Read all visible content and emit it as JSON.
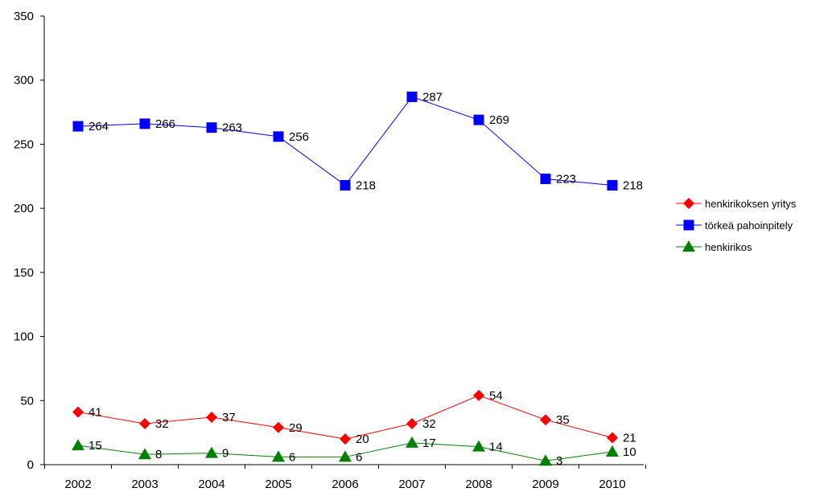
{
  "chart_data": {
    "type": "line",
    "title": "",
    "xlabel": "",
    "ylabel": "",
    "ylim": [
      0,
      350
    ],
    "yticks": [
      0,
      50,
      100,
      150,
      200,
      250,
      300,
      350
    ],
    "grid": false,
    "legend_position": "right",
    "categories": [
      "2002",
      "2003",
      "2004",
      "2005",
      "2006",
      "2007",
      "2008",
      "2009",
      "2010"
    ],
    "series": [
      {
        "name": "henkirikoksen yritys",
        "color": "#ff0000",
        "marker": "diamond",
        "values": [
          41,
          32,
          37,
          29,
          20,
          32,
          54,
          35,
          21
        ]
      },
      {
        "name": "törkeä pahoinpitely",
        "color": "#0000ff",
        "marker": "square",
        "values": [
          264,
          266,
          263,
          256,
          218,
          287,
          269,
          223,
          218
        ]
      },
      {
        "name": "henkirikos",
        "color": "#008000",
        "marker": "triangle",
        "values": [
          15,
          8,
          9,
          6,
          6,
          17,
          14,
          3,
          10
        ]
      }
    ]
  }
}
